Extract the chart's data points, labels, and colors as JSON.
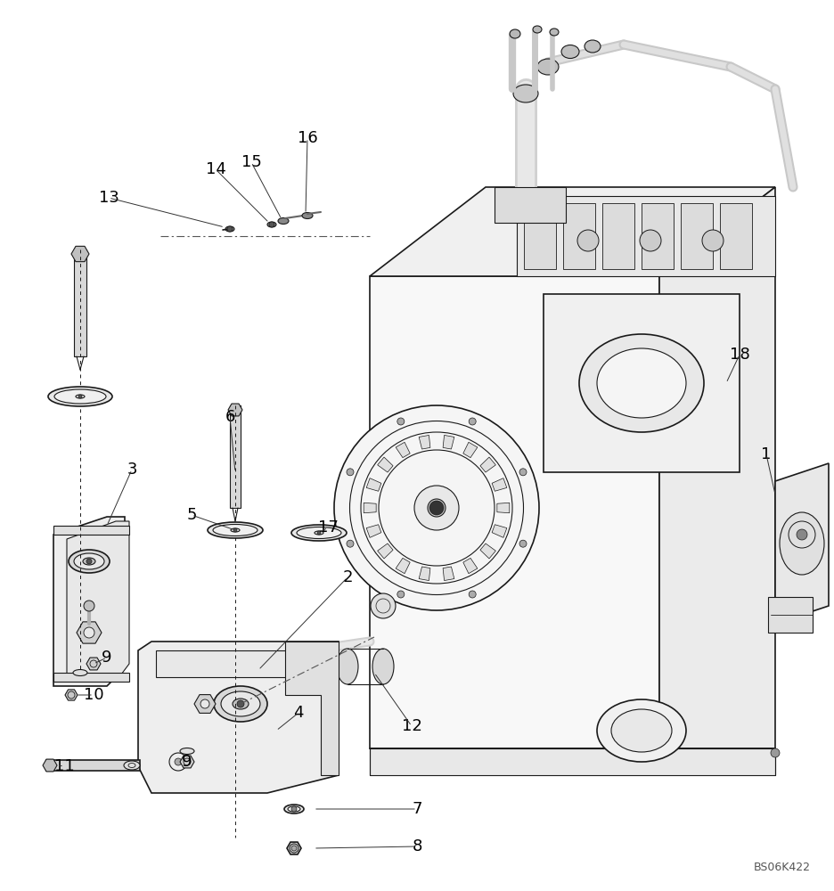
{
  "bg_color": "#ffffff",
  "lc": "#1a1a1a",
  "lw": 0.8,
  "lw2": 1.2,
  "watermark": "BS06K422",
  "figsize": [
    9.36,
    10.0
  ],
  "dpi": 100,
  "labels": [
    [
      "1",
      860,
      510
    ],
    [
      "2",
      390,
      648
    ],
    [
      "3",
      148,
      527
    ],
    [
      "4",
      335,
      800
    ],
    [
      "5",
      215,
      578
    ],
    [
      "6",
      258,
      468
    ],
    [
      "7",
      468,
      908
    ],
    [
      "8",
      468,
      950
    ],
    [
      "9",
      120,
      738
    ],
    [
      "9",
      210,
      855
    ],
    [
      "10",
      105,
      780
    ],
    [
      "11",
      72,
      860
    ],
    [
      "12",
      462,
      815
    ],
    [
      "13",
      122,
      222
    ],
    [
      "14",
      242,
      190
    ],
    [
      "15",
      282,
      182
    ],
    [
      "16",
      345,
      155
    ],
    [
      "17",
      368,
      592
    ],
    [
      "18",
      830,
      398
    ]
  ]
}
